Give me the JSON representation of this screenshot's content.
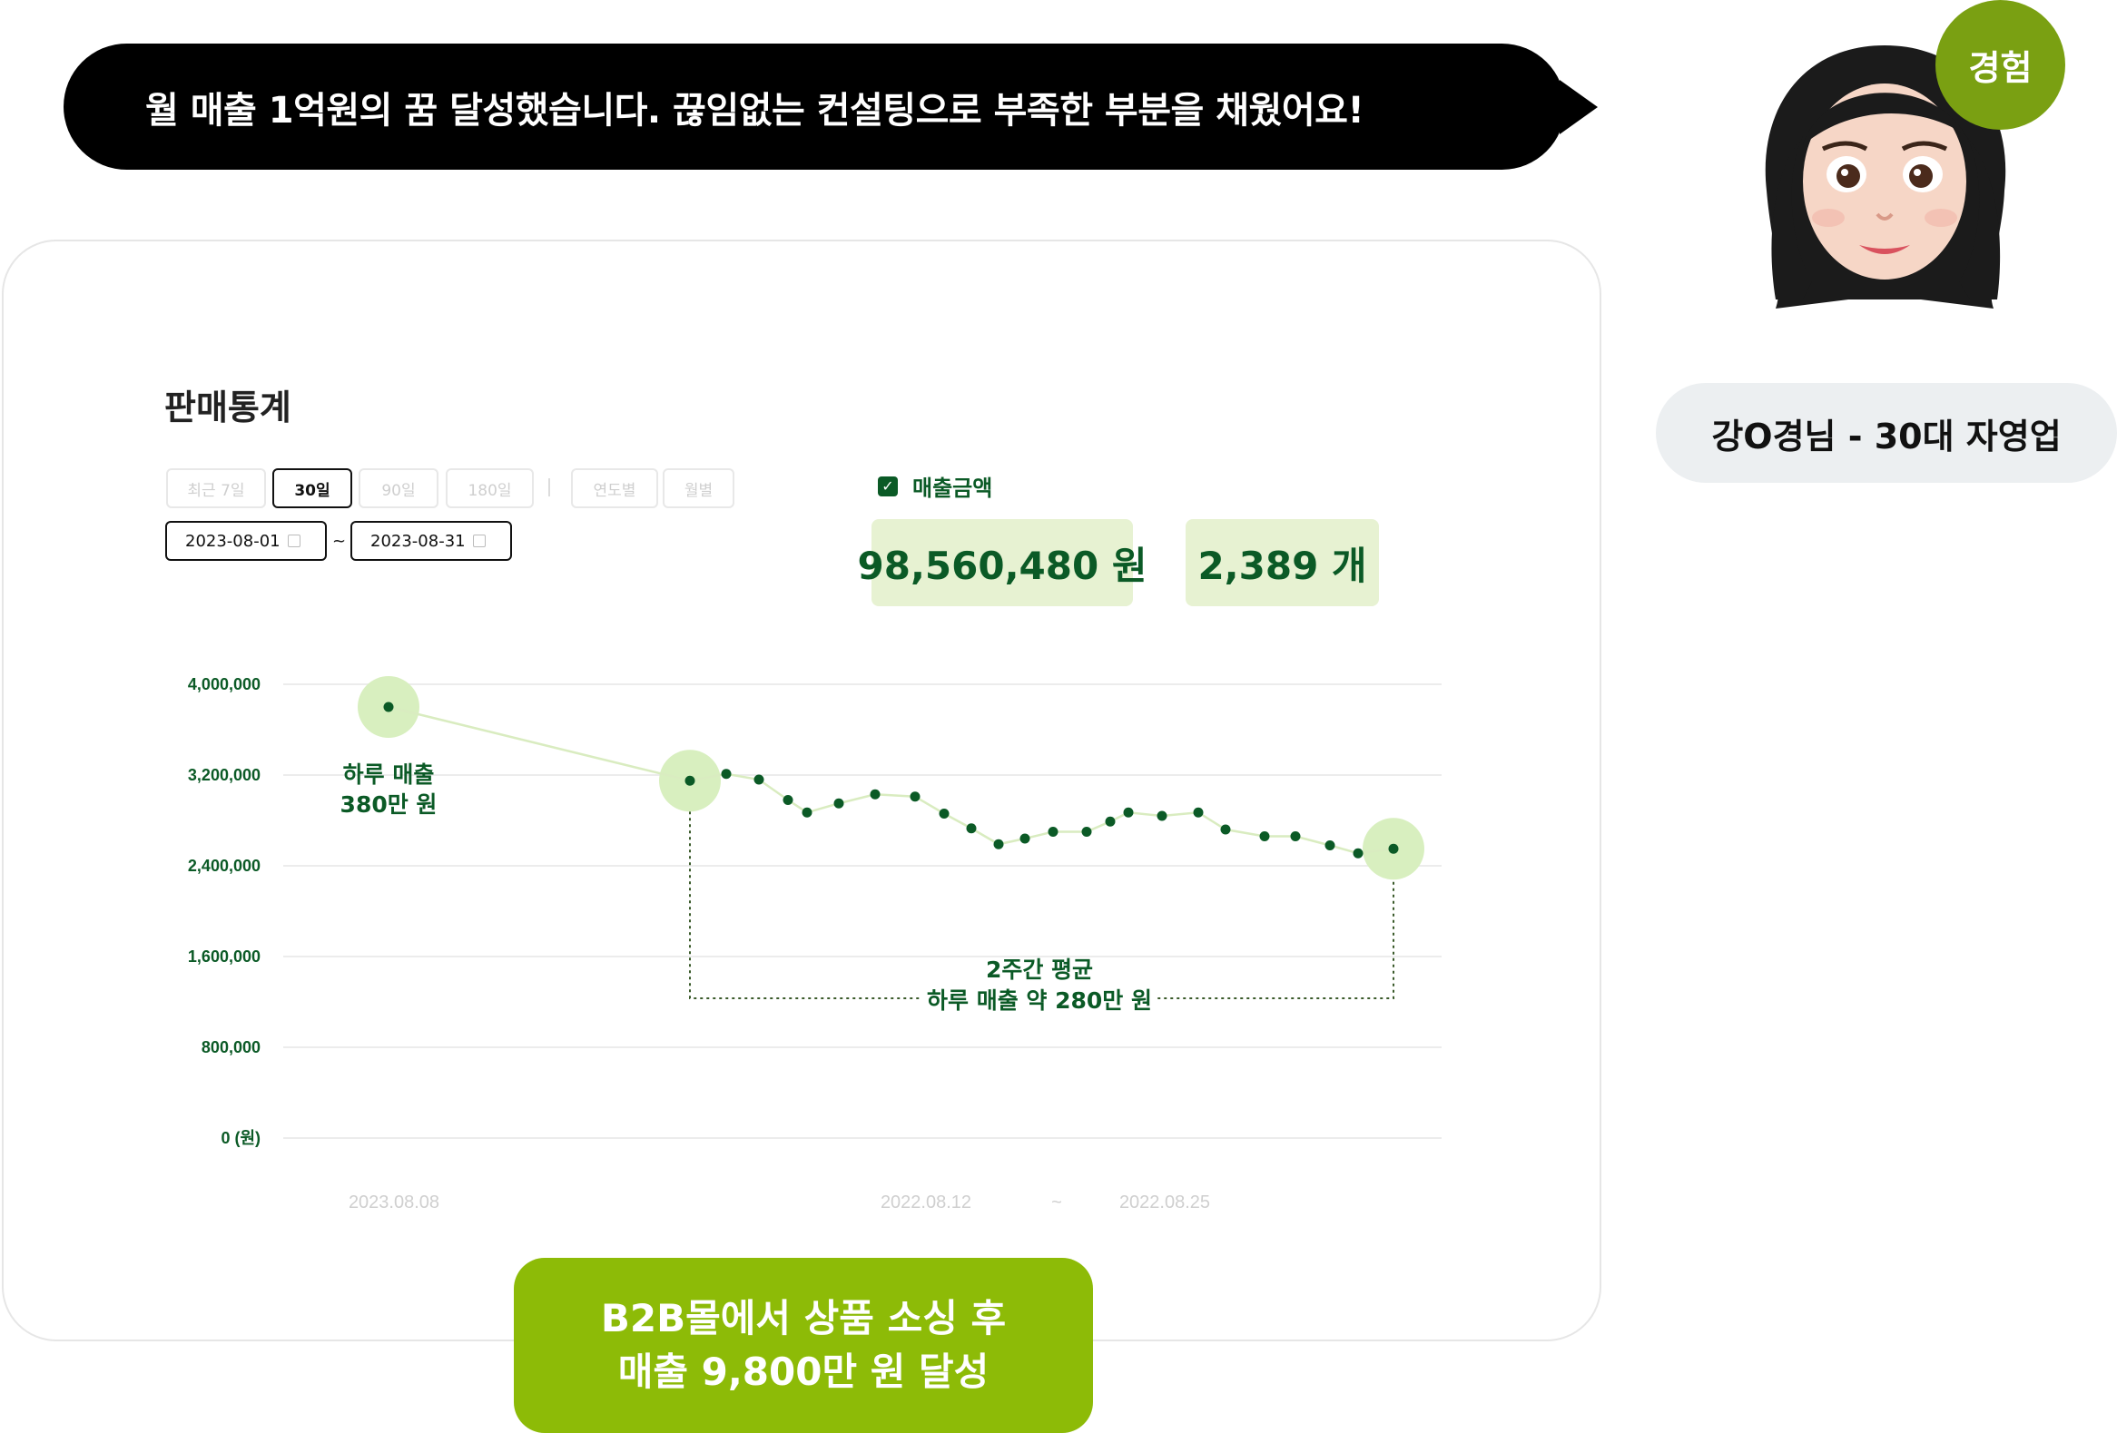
{
  "testimonial": {
    "quote": "월 매출 1억원의 꿈 달성했습니다. 끊임없는 컨설팅으로 부족한 부분을 채웠어요!",
    "badge": "경험",
    "persona": "강O경님 - 30대 자영업",
    "avatar_icon": "memoji-woman-avatar"
  },
  "dashboard": {
    "title": "판매통계",
    "period_tabs": [
      "최근 7일",
      "30일",
      "90일",
      "180일",
      "연도별",
      "월별"
    ],
    "active_tab": "30일",
    "date_from": "2023-08-01",
    "date_to": "2023-08-31",
    "date_separator": "~",
    "legend_label": "매출금액",
    "legend_checked": true,
    "total_sales": "98,560,480 원",
    "total_count": "2,389 개"
  },
  "chart_data": {
    "type": "line",
    "ylim": [
      0,
      4000000
    ],
    "y_ticks": [
      "4,000,000",
      "3,200,000",
      "2,400,000",
      "1,600,000",
      "800,000",
      "0 (원)"
    ],
    "y_tick_values": [
      4000000,
      3200000,
      2400000,
      1600000,
      800000,
      0
    ],
    "x_labels": [
      "2023.08.08",
      "2022.08.12",
      "~",
      "2022.08.25"
    ],
    "series": [
      {
        "values": [
          3800000,
          3150000,
          3210000,
          3160000,
          2980000,
          2870000,
          2950000,
          3030000,
          3010000,
          2860000,
          2730000,
          2590000,
          2640000,
          2700000,
          2700000,
          2790000,
          2870000,
          2840000,
          2870000,
          2720000,
          2660000,
          2660000,
          2580000,
          2510000,
          2550000
        ]
      }
    ],
    "highlight_points": [
      0,
      1,
      24
    ],
    "annotations": {
      "peak_line1": "하루 매출",
      "peak_line2": "380만 원",
      "avg_line1": "2주간 평균",
      "avg_line2": "하루 매출 약 280만 원"
    },
    "colors": {
      "line": "#d9ecc0",
      "point": "#0b5a26",
      "highlight": "#d8efbf",
      "grid": "#ececec",
      "text": "#0b5a26"
    }
  },
  "cta": {
    "line1": "B2B몰에서 상품 소싱 후",
    "line2": "매출 9,800만 원 달성"
  }
}
